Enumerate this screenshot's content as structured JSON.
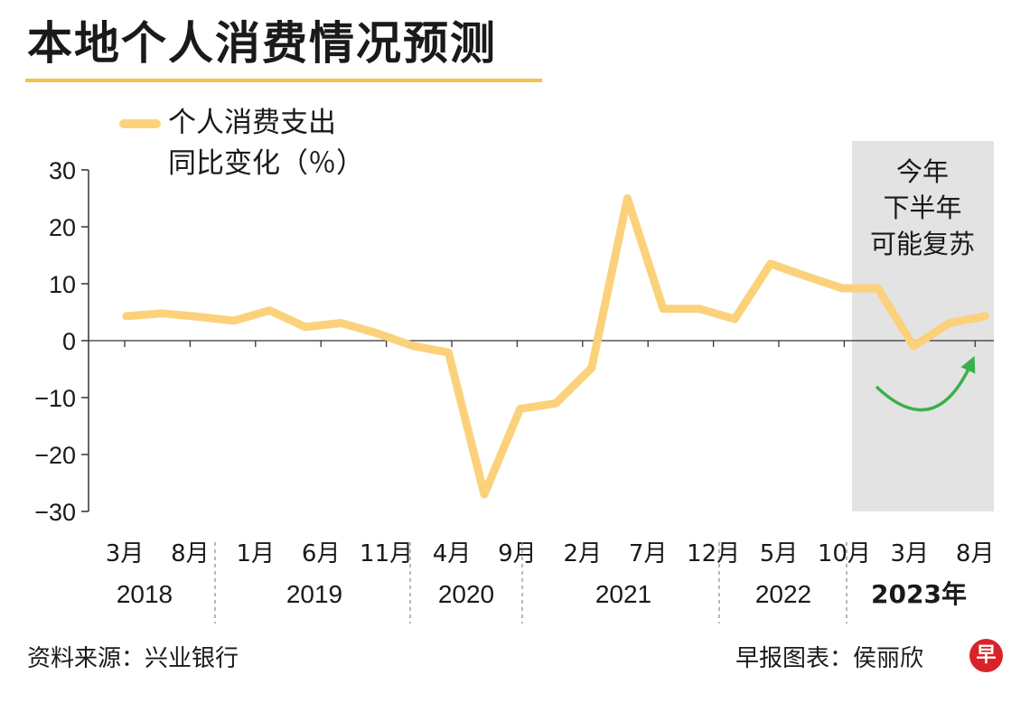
{
  "header": {
    "title": "本地个人消费情况预测"
  },
  "legend": {
    "line1": "个人消费支出",
    "line2": "同比变化（％）"
  },
  "annotation": {
    "lines": [
      "今年",
      "下半年",
      "可能复苏"
    ]
  },
  "footer": {
    "source": "资料来源：兴业银行",
    "credit": "早报图表：侯丽欣",
    "logo_char": "早"
  },
  "colors": {
    "line": "#FBD27B",
    "arrow": "#3BB04A",
    "highlight_band": "#E3E3E3",
    "title_underline": "#F2C14E",
    "logo": "#D8232A",
    "axis": "#333333",
    "text": "#1a1a1a"
  },
  "chart_data": {
    "type": "line",
    "title": "本地个人消费情况预测",
    "xlabel": "",
    "ylabel": "",
    "ylim": [
      -30,
      30
    ],
    "yticks": [
      "30",
      "20",
      "10",
      "0",
      "−10",
      "−20",
      "−30"
    ],
    "ytick_values": [
      30,
      20,
      10,
      0,
      -10,
      -20,
      -30
    ],
    "grid": false,
    "legend_position": "top-left",
    "x_tick_labels": [
      {
        "label": "3月",
        "index": 0
      },
      {
        "label": "8月",
        "index": 1
      },
      {
        "label": "1月",
        "index": 2
      },
      {
        "label": "6月",
        "index": 3
      },
      {
        "label": "11月",
        "index": 4
      },
      {
        "label": "4月",
        "index": 5
      },
      {
        "label": "9月",
        "index": 6
      },
      {
        "label": "2月",
        "index": 7
      },
      {
        "label": "7月",
        "index": 8
      },
      {
        "label": "12月",
        "index": 9
      },
      {
        "label": "5月",
        "index": 10
      },
      {
        "label": "10月",
        "index": 11
      },
      {
        "label": "3月",
        "index": 12
      },
      {
        "label": "8月",
        "index": 13
      }
    ],
    "year_labels": [
      {
        "label": "2018",
        "bold": false
      },
      {
        "label": "2019",
        "bold": false
      },
      {
        "label": "2020",
        "bold": false
      },
      {
        "label": "2021",
        "bold": false
      },
      {
        "label": "2022",
        "bold": false
      },
      {
        "label": "2023年",
        "bold": true
      }
    ],
    "series": [
      {
        "name": "个人消费支出同比变化（％）",
        "values": [
          4.3,
          4.8,
          4.2,
          3.5,
          5.3,
          2.4,
          3.1,
          1.3,
          -0.9,
          -2.1,
          -27.0,
          -12.0,
          -11.0,
          -4.8,
          25.0,
          5.6,
          5.6,
          3.8,
          13.5,
          11.3,
          9.2,
          9.2,
          -1.0,
          3.1,
          4.3
        ]
      }
    ],
    "highlight": {
      "label_ref": "annotation.lines",
      "covers": "2023年"
    }
  }
}
